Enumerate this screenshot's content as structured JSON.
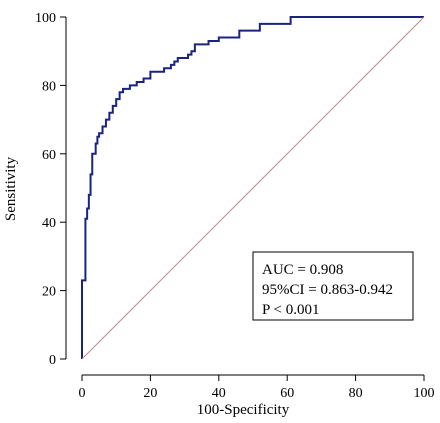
{
  "chart_data": {
    "type": "line",
    "xlabel": "100-Specificity",
    "ylabel": "Sensitivity",
    "xlim": [
      0,
      100
    ],
    "ylim": [
      0,
      100
    ],
    "xticks": [
      "0",
      "20",
      "40",
      "60",
      "80",
      "100"
    ],
    "yticks": [
      "0",
      "20",
      "40",
      "60",
      "80",
      "100"
    ],
    "grid": false,
    "series": [
      {
        "x": [
          0,
          0,
          1,
          1,
          1.5,
          1.5,
          2,
          2,
          2.5,
          2.5,
          3,
          3,
          4,
          4,
          4.5,
          4.5,
          5,
          5,
          6,
          6,
          7,
          7,
          8,
          8,
          9,
          9,
          10,
          10,
          11,
          11,
          12,
          12,
          14,
          14,
          16,
          16,
          18,
          18,
          20,
          20,
          24,
          24,
          26,
          26,
          27,
          27,
          28,
          28,
          31,
          31,
          32,
          32,
          33,
          33,
          37,
          37,
          40,
          40,
          46,
          46,
          52,
          52,
          61,
          61,
          100
        ],
        "y": [
          0,
          23,
          23,
          41,
          41,
          44,
          44,
          48,
          48,
          54,
          54,
          60,
          60,
          63,
          63,
          65,
          65,
          66,
          66,
          68,
          68,
          70,
          70,
          72,
          72,
          74,
          74,
          76,
          76,
          78,
          78,
          79,
          79,
          80,
          80,
          81,
          81,
          82,
          82,
          84,
          84,
          85,
          85,
          86,
          86,
          87,
          87,
          88,
          88,
          89,
          89,
          90,
          90,
          92,
          92,
          93,
          93,
          94,
          94,
          96,
          96,
          98,
          98,
          100,
          100
        ],
        "color": "#1a237e"
      },
      {
        "x": [
          0,
          100
        ],
        "y": [
          0,
          100
        ],
        "color": "#c9868c",
        "style": "reference"
      }
    ],
    "annotations": [
      "AUC = 0.908",
      "95%CI = 0.863-0.942",
      "P < 0.001"
    ]
  }
}
